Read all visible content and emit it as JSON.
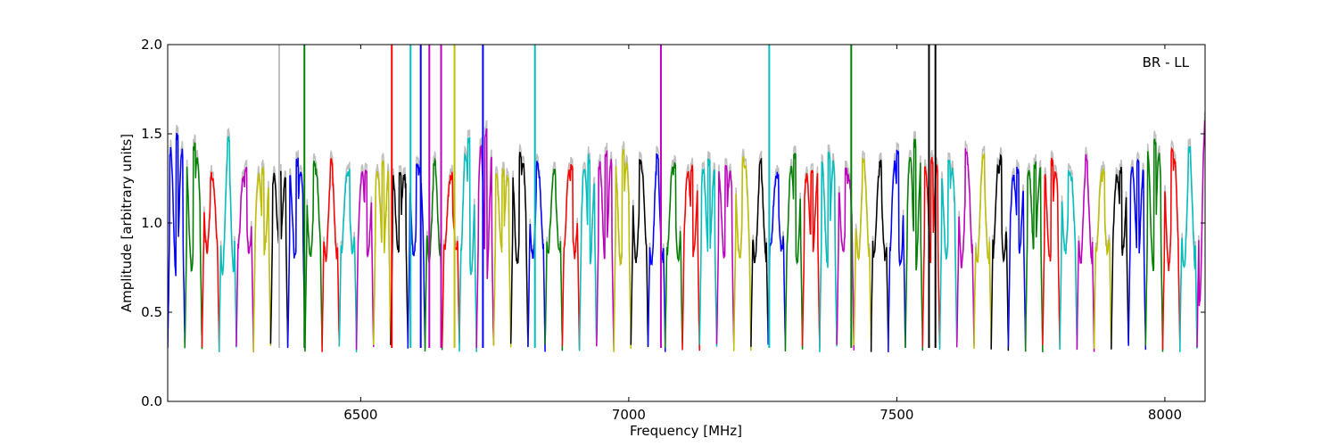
{
  "chart_data": {
    "type": "line",
    "annotation": "BR - LL",
    "xlabel": "Frequency [MHz]",
    "ylabel": "Amplitude [arbitrary units]",
    "xlim": [
      6140,
      8075
    ],
    "ylim": [
      0.0,
      2.0
    ],
    "xticks": [
      6500,
      7000,
      7500,
      8000
    ],
    "xtick_labels": [
      "6500",
      "7000",
      "7500",
      "8000"
    ],
    "yticks": [
      0.0,
      0.5,
      1.0,
      1.5,
      2.0
    ],
    "ytick_labels": [
      "0.0",
      "0.5",
      "1.0",
      "1.5",
      "2.0"
    ],
    "grid": false,
    "background_trace_color": "#bfbfbf",
    "channel_width_mhz": 32,
    "channel_start_mhz": 6140,
    "color_cycle": [
      "#0000ff",
      "#008000",
      "#ff0000",
      "#00bfbf",
      "#bf00bf",
      "#bfbf00",
      "#000000"
    ],
    "channel_peaks": [
      1.5,
      1.44,
      1.28,
      1.47,
      1.3,
      1.3,
      1.3,
      1.35,
      1.34,
      1.36,
      1.3,
      1.31,
      1.34,
      1.3,
      1.34,
      1.36,
      1.27,
      1.47,
      1.52,
      1.3,
      1.4,
      1.33,
      1.3,
      1.32,
      1.37,
      1.4,
      1.4,
      1.36,
      1.39,
      1.35,
      1.32,
      1.35,
      1.32,
      1.36,
      1.36,
      1.28,
      1.38,
      1.3,
      1.4,
      1.3,
      1.36,
      1.34,
      1.4,
      1.45,
      1.36,
      1.34,
      1.4,
      1.38,
      1.37,
      1.3,
      1.34,
      1.35,
      1.3,
      1.38,
      1.3,
      1.3,
      1.36,
      1.46,
      1.42,
      1.43,
      1.72
    ],
    "spikes": [
      {
        "x": 6348,
        "y": 2.0,
        "color": "#bfbfbf"
      },
      {
        "x": 6395,
        "y": 2.0,
        "color": "#008000"
      },
      {
        "x": 6558,
        "y": 2.0,
        "color": "#ff0000"
      },
      {
        "x": 6593,
        "y": 2.0,
        "color": "#00bfbf"
      },
      {
        "x": 6612,
        "y": 2.0,
        "color": "#0000ff"
      },
      {
        "x": 6628,
        "y": 2.0,
        "color": "#bf00bf"
      },
      {
        "x": 6650,
        "y": 2.0,
        "color": "#bf00bf"
      },
      {
        "x": 6675,
        "y": 2.0,
        "color": "#bfbf00"
      },
      {
        "x": 6728,
        "y": 2.0,
        "color": "#0000ff"
      },
      {
        "x": 6825,
        "y": 2.0,
        "color": "#00bfbf"
      },
      {
        "x": 7060,
        "y": 2.0,
        "color": "#bf00bf"
      },
      {
        "x": 7262,
        "y": 2.0,
        "color": "#00bfbf"
      },
      {
        "x": 7415,
        "y": 2.0,
        "color": "#008000"
      },
      {
        "x": 7560,
        "y": 2.0,
        "color": "#000000"
      },
      {
        "x": 7572,
        "y": 2.0,
        "color": "#000000"
      }
    ],
    "series_note": ""
  }
}
